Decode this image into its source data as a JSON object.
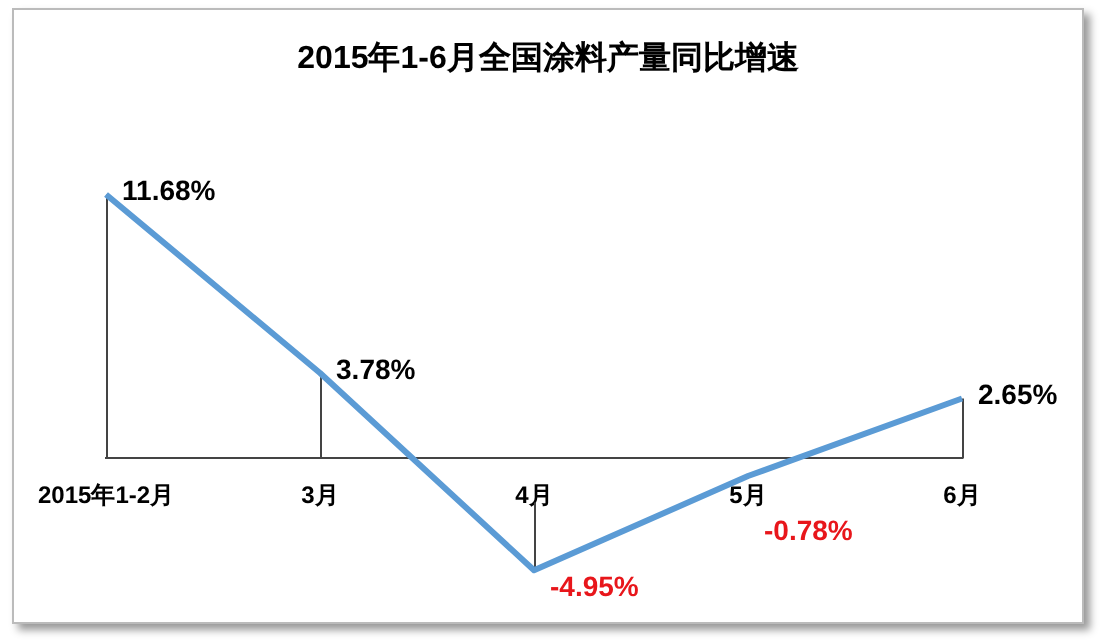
{
  "chart_data": {
    "type": "line",
    "title": "2015年1-6月全国涂料产量同比增速",
    "categories": [
      "2015年1-2月",
      "3月",
      "4月",
      "5月",
      "6月"
    ],
    "series": [
      {
        "color": "#5b9bd5",
        "values": [
          11.68,
          3.78,
          -4.95,
          -0.78,
          2.65
        ],
        "value_labels": [
          "11.68%",
          "3.78%",
          "-4.95%",
          "-0.78%",
          "2.65%"
        ]
      }
    ],
    "marker": "none",
    "line_style": "solid",
    "grid": false,
    "legend": false,
    "tick_labels": "x"
  }
}
